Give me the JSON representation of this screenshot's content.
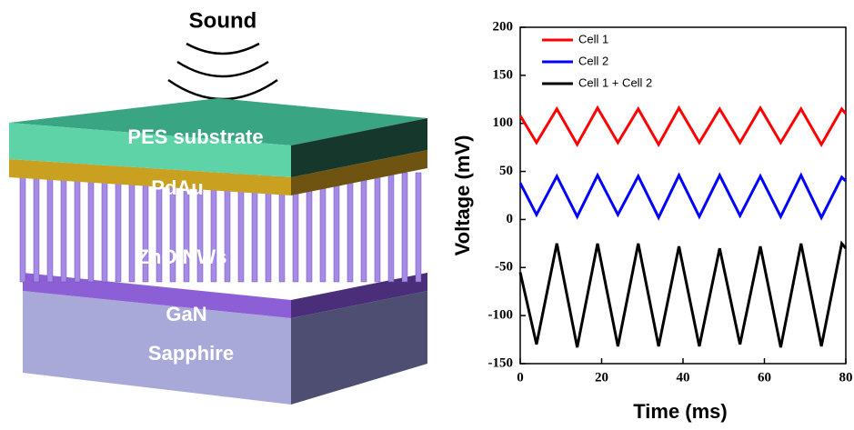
{
  "diagram": {
    "labels": {
      "sound": "Sound",
      "pes": "PES substrate",
      "pdau": "PdAu",
      "zno": "ZnO NWs",
      "gan": "GaN",
      "sapphire": "Sapphire"
    }
  },
  "chart_data": {
    "type": "line",
    "x": [
      0,
      4,
      9,
      14,
      19,
      24,
      29,
      34,
      39,
      44,
      49,
      54,
      59,
      64,
      69,
      74,
      79,
      80
    ],
    "series": [
      {
        "name": "Cell 1",
        "color": "#ff0000",
        "values": [
          108,
          80,
          115,
          78,
          116,
          80,
          115,
          78,
          116,
          80,
          115,
          80,
          116,
          80,
          115,
          78,
          115,
          110
        ]
      },
      {
        "name": "Cell 2",
        "color": "#0000ff",
        "values": [
          38,
          5,
          45,
          3,
          46,
          5,
          45,
          2,
          46,
          3,
          46,
          4,
          45,
          3,
          46,
          2,
          44,
          40
        ]
      },
      {
        "name": "Cell 1 + Cell 2",
        "color": "#000000",
        "values": [
          -55,
          -130,
          -25,
          -133,
          -25,
          -132,
          -25,
          -132,
          -28,
          -132,
          -30,
          -130,
          -28,
          -133,
          -25,
          -132,
          -25,
          -30
        ]
      }
    ],
    "xlabel": "Time (ms)",
    "ylabel": "Voltage (mV)",
    "xlim": [
      0,
      80
    ],
    "xticks": [
      0,
      20,
      40,
      60,
      80
    ],
    "ylim": [
      -150,
      200
    ],
    "yticks": [
      -150,
      -100,
      -50,
      0,
      50,
      100,
      150,
      200
    ],
    "legend": "upper-left"
  }
}
